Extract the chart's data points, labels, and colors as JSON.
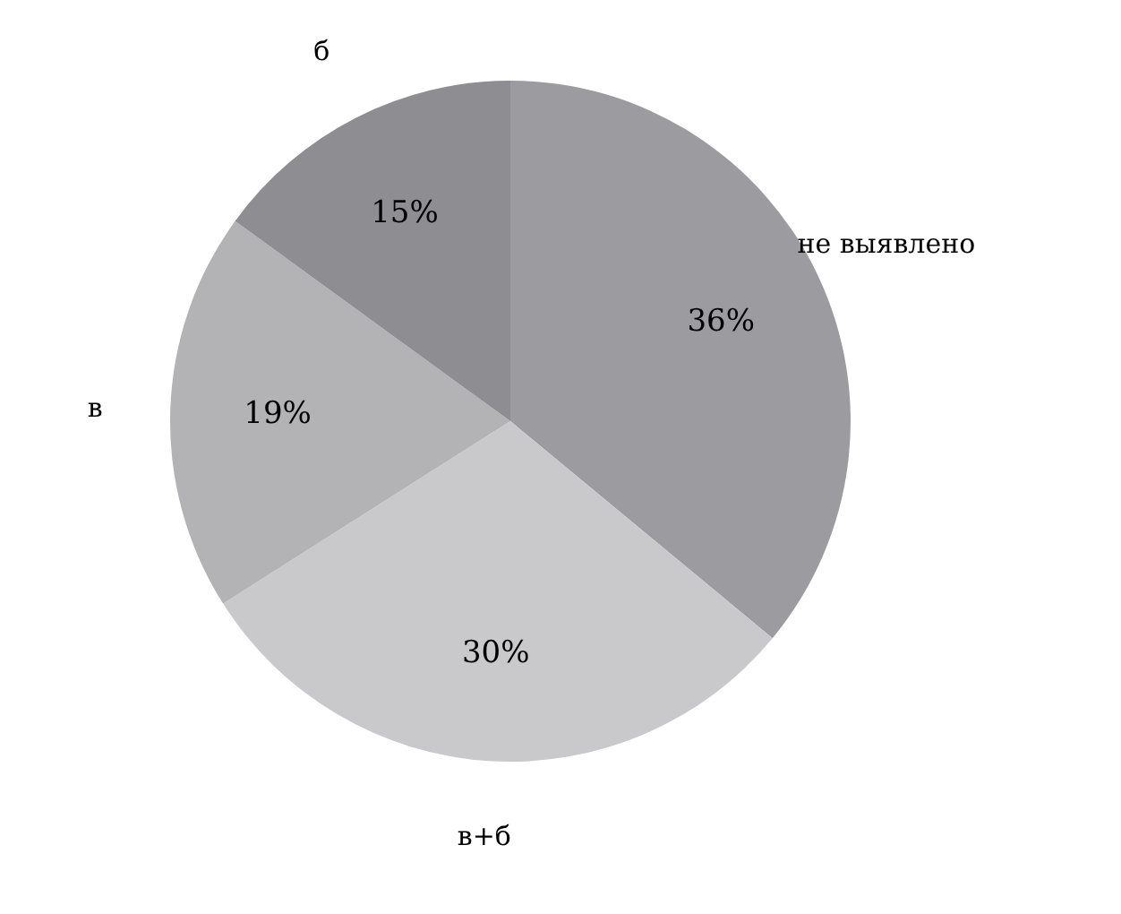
{
  "chart_data": {
    "type": "pie",
    "categories": [
      "не выявлено",
      "в+б",
      "в",
      "б"
    ],
    "values": [
      36,
      30,
      19,
      15
    ],
    "value_labels": [
      "36%",
      "30%",
      "19%",
      "15%"
    ],
    "colors": [
      "#9c9ca0",
      "#c9c9cb",
      "#b3b3b5",
      "#8e8e92"
    ],
    "legend": false
  }
}
